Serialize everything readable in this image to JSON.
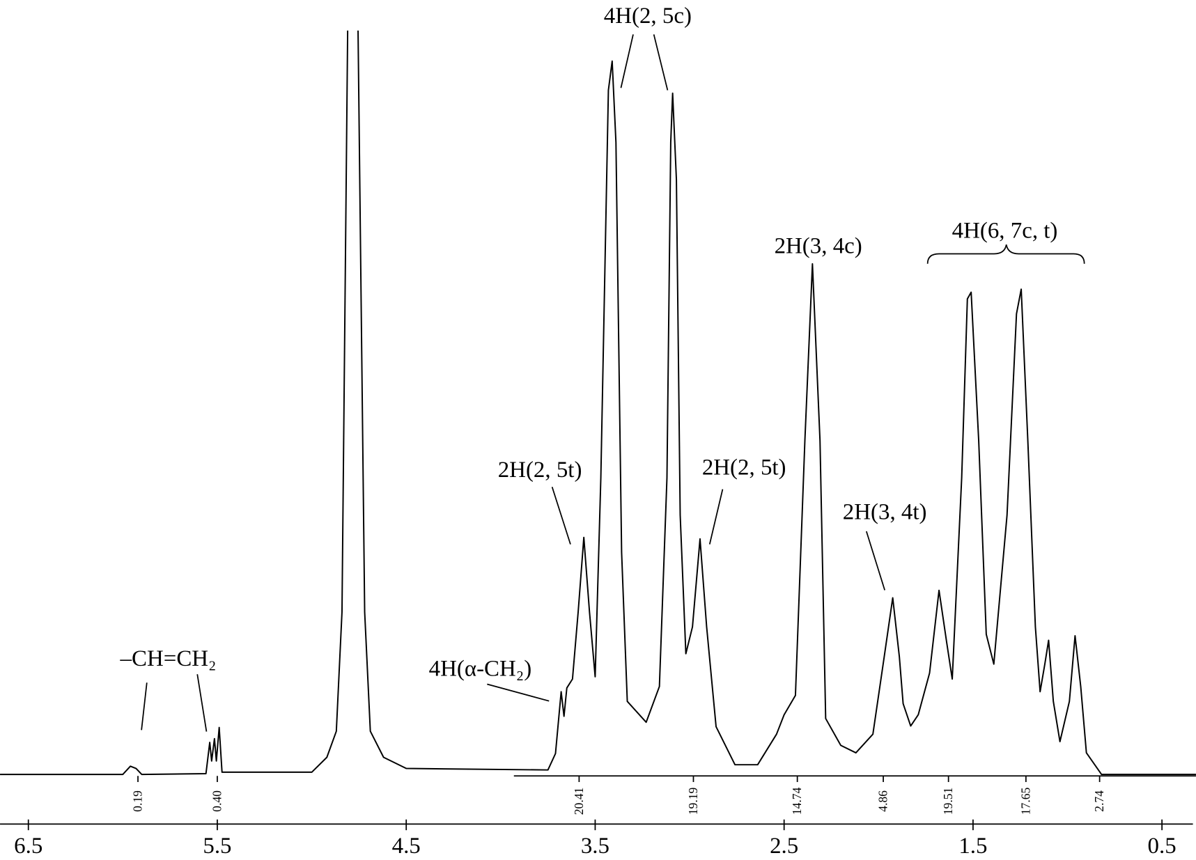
{
  "chart_data": {
    "type": "line",
    "color": "#000000",
    "xlim": [
      6.65,
      0.32
    ],
    "ylim": [
      0,
      100
    ],
    "xticks": [
      6.5,
      5.5,
      4.5,
      3.5,
      2.5,
      1.5,
      0.5
    ],
    "grid": false,
    "x": [
      6.65,
      6.0,
      5.96,
      5.93,
      5.9,
      5.56,
      5.54,
      5.53,
      5.515,
      5.505,
      5.49,
      5.475,
      5.0,
      4.92,
      4.87,
      4.84,
      4.81,
      4.78,
      4.755,
      4.72,
      4.69,
      4.62,
      4.5,
      3.75,
      3.71,
      3.68,
      3.665,
      3.65,
      3.62,
      3.59,
      3.56,
      3.53,
      3.5,
      3.47,
      3.43,
      3.41,
      3.39,
      3.36,
      3.33,
      3.23,
      3.16,
      3.12,
      3.1,
      3.09,
      3.07,
      3.05,
      3.02,
      2.985,
      2.945,
      2.91,
      2.86,
      2.76,
      2.64,
      2.54,
      2.5,
      2.44,
      2.39,
      2.35,
      2.31,
      2.28,
      2.2,
      2.12,
      2.03,
      1.97,
      1.925,
      1.89,
      1.87,
      1.83,
      1.79,
      1.73,
      1.68,
      1.64,
      1.61,
      1.56,
      1.53,
      1.51,
      1.47,
      1.43,
      1.39,
      1.32,
      1.27,
      1.245,
      1.21,
      1.17,
      1.145,
      1.12,
      1.1,
      1.075,
      1.04,
      0.99,
      0.96,
      0.93,
      0.9,
      0.82,
      0.32
    ],
    "values": [
      0.2,
      0.2,
      1.3,
      1.0,
      0.2,
      0.3,
      4.5,
      2,
      5,
      2,
      6.5,
      0.5,
      0.5,
      2.5,
      6,
      22,
      100,
      null,
      100,
      22,
      6,
      2.5,
      1,
      0.8,
      3,
      11.3,
      8,
      11.8,
      13,
      22,
      32,
      22,
      13.3,
      40,
      92,
      95.9,
      85,
      30,
      10,
      7.2,
      12,
      40,
      85,
      91.6,
      80,
      35,
      16.4,
      20,
      31.8,
      20,
      6.6,
      1.5,
      1.5,
      5.6,
      8.2,
      10.8,
      45,
      68.7,
      45,
      7.7,
      4.1,
      3.1,
      5.6,
      16,
      23.9,
      16,
      9.7,
      6.7,
      8.2,
      13.8,
      24.9,
      18,
      13,
      40,
      64,
      64.9,
      45,
      19,
      15,
      35,
      62,
      65.3,
      45,
      20,
      11.3,
      15,
      18.2,
      10,
      4.6,
      10,
      18.8,
      12,
      3.1,
      0.2,
      0.2
    ],
    "integrals": {
      "x": [
        5.92,
        5.5,
        3.585,
        2.98,
        2.43,
        1.975,
        1.63,
        1.22,
        0.83
      ],
      "labels": [
        "0.19",
        "0.40",
        "20.41",
        "19.19",
        "14.74",
        "4.86",
        "19.51",
        "17.65",
        "2.74"
      ]
    },
    "annotations": [
      "4H(2, 5c)",
      "2H(2, 5t)",
      "2H(2, 5t)",
      "2H(3, 4c)",
      "2H(3, 4t)",
      "4H(6, 7c, t)",
      "4H(α-CH₂)",
      "–CH=CH₂"
    ]
  }
}
